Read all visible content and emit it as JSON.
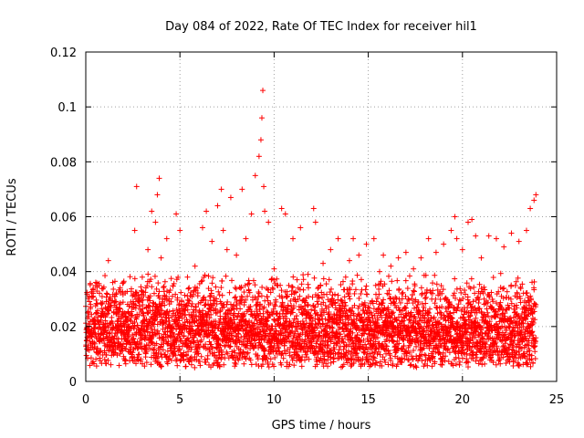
{
  "chart_data": {
    "type": "scatter",
    "title": "Day 084 of 2022, Rate Of TEC Index for receiver hil1",
    "xlabel": "GPS time / hours",
    "ylabel": "ROTI / TECUs",
    "xlim": [
      0,
      25
    ],
    "ylim": [
      0,
      0.12
    ],
    "xticks": [
      0,
      5,
      10,
      15,
      20,
      25
    ],
    "xtick_labels": [
      "0",
      "5",
      "10",
      "15",
      "20",
      "25"
    ],
    "yticks": [
      0,
      0.02,
      0.04,
      0.06,
      0.08,
      0.1,
      0.12
    ],
    "ytick_labels": [
      "0",
      "0.02",
      "0.04",
      "0.06",
      "0.08",
      "0.1",
      "0.12"
    ],
    "grid": true,
    "marker": "plus",
    "color": "#ff0000",
    "x_range_hours": [
      0,
      23.9
    ],
    "typical_band": [
      0.005,
      0.04
    ],
    "series": [
      {
        "name": "ROTI",
        "x": [
          0.1,
          0.4,
          0.8,
          1.2,
          1.6,
          2.0,
          2.4,
          2.6,
          2.7,
          3.0,
          3.3,
          3.5,
          3.7,
          3.8,
          3.9,
          4.0,
          4.3,
          4.6,
          4.8,
          5.0,
          5.4,
          5.8,
          6.2,
          6.4,
          6.7,
          7.0,
          7.2,
          7.3,
          7.5,
          7.7,
          8.0,
          8.3,
          8.5,
          8.8,
          9.0,
          9.2,
          9.3,
          9.35,
          9.4,
          9.45,
          9.5,
          9.7,
          10.0,
          10.4,
          10.6,
          11.0,
          11.4,
          11.8,
          12.1,
          12.2,
          12.6,
          13.0,
          13.4,
          13.8,
          14.0,
          14.2,
          14.5,
          14.9,
          15.3,
          15.6,
          15.8,
          16.2,
          16.6,
          17.0,
          17.4,
          17.8,
          18.2,
          18.6,
          19.0,
          19.4,
          19.6,
          19.7,
          20.0,
          20.3,
          20.5,
          20.7,
          21.0,
          21.4,
          21.8,
          22.2,
          22.6,
          23.0,
          23.4,
          23.6,
          23.8,
          23.9
        ],
        "y": [
          0.025,
          0.031,
          0.019,
          0.044,
          0.027,
          0.036,
          0.022,
          0.055,
          0.071,
          0.038,
          0.048,
          0.062,
          0.058,
          0.068,
          0.074,
          0.045,
          0.052,
          0.031,
          0.061,
          0.055,
          0.038,
          0.042,
          0.056,
          0.062,
          0.051,
          0.064,
          0.07,
          0.055,
          0.048,
          0.067,
          0.046,
          0.07,
          0.052,
          0.061,
          0.075,
          0.082,
          0.088,
          0.096,
          0.106,
          0.071,
          0.062,
          0.058,
          0.041,
          0.063,
          0.061,
          0.052,
          0.056,
          0.039,
          0.063,
          0.058,
          0.043,
          0.048,
          0.052,
          0.038,
          0.044,
          0.052,
          0.046,
          0.05,
          0.052,
          0.04,
          0.046,
          0.042,
          0.045,
          0.047,
          0.041,
          0.045,
          0.052,
          0.047,
          0.05,
          0.055,
          0.06,
          0.052,
          0.048,
          0.058,
          0.059,
          0.053,
          0.045,
          0.053,
          0.052,
          0.049,
          0.054,
          0.051,
          0.055,
          0.063,
          0.066,
          0.068
        ]
      }
    ]
  }
}
